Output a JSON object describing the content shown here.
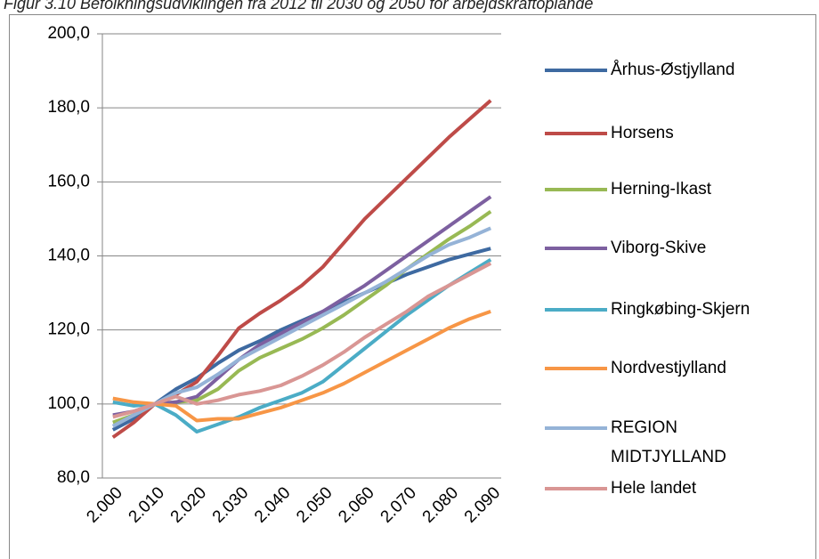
{
  "chart_data": {
    "type": "line",
    "title": "Figur 3.10 Befolkningsudviklingen fra 2012 til 2030 og 2050 for arbejdskraftoplande",
    "categories": [
      "2.000",
      null,
      "2.010",
      null,
      "2.020",
      null,
      "2.030",
      null,
      "2.040",
      null,
      "2.050",
      null,
      "2.060",
      null,
      "2.070",
      null,
      "2.080",
      null,
      "2.090"
    ],
    "ylim": [
      80,
      200
    ],
    "yticks": [
      {
        "value": 80,
        "label": "80,0"
      },
      {
        "value": 100,
        "label": "100,0"
      },
      {
        "value": 120,
        "label": "120,0"
      },
      {
        "value": 140,
        "label": "140,0"
      },
      {
        "value": 160,
        "label": "160,0"
      },
      {
        "value": 180,
        "label": "180,0"
      },
      {
        "value": 200,
        "label": "200,0"
      }
    ],
    "grid": true,
    "legend": "right",
    "series": [
      {
        "name": "Århus-Østjylland",
        "color": "#3e6aa1",
        "values": [
          93,
          96,
          100,
          104,
          107,
          111,
          114.5,
          117,
          120,
          122.5,
          125,
          127.5,
          130,
          132.5,
          135,
          137,
          139,
          140.5,
          142
        ]
      },
      {
        "name": "Horsens",
        "color": "#be4b48",
        "values": [
          91,
          95,
          100,
          102.5,
          106,
          113,
          120.5,
          124.5,
          128,
          132,
          137,
          143.5,
          150,
          155.5,
          161,
          166.5,
          172,
          177,
          182
        ]
      },
      {
        "name": "Herning-Ikast",
        "color": "#98b954",
        "values": [
          95,
          97,
          100,
          100.5,
          101,
          104,
          109,
          112.5,
          115,
          117.5,
          120.5,
          124,
          128,
          132,
          136.5,
          140.5,
          144.5,
          148,
          152
        ]
      },
      {
        "name": "Viborg-Skive",
        "color": "#7d60a0",
        "values": [
          97,
          98,
          100,
          100.5,
          102,
          107,
          112,
          116,
          119,
          122,
          125,
          128.5,
          132,
          136,
          140,
          144,
          148,
          152,
          156
        ]
      },
      {
        "name": "Ringkøbing-Skjern",
        "color": "#4bacc6",
        "values": [
          100.5,
          99.5,
          100,
          97,
          92.5,
          94.5,
          96.5,
          99,
          101,
          103,
          106,
          110.5,
          115,
          119.5,
          124,
          128,
          132,
          135.5,
          139
        ]
      },
      {
        "name": "Nordvestjylland",
        "color": "#f79646",
        "values": [
          101.5,
          100.5,
          100,
          99.5,
          95.5,
          96,
          96,
          97.5,
          99,
          101,
          103,
          105.5,
          108.5,
          111.5,
          114.5,
          117.5,
          120.5,
          123,
          125
        ]
      },
      {
        "name": "REGION MIDTJYLLAND",
        "color": "#95b3d7",
        "values": [
          94,
          97,
          100,
          103,
          104.5,
          108,
          112,
          115,
          118,
          121,
          124,
          127,
          130,
          133,
          136.5,
          140,
          143,
          145,
          147.5
        ]
      },
      {
        "name": "Hele landet",
        "color": "#d99694",
        "values": [
          96.5,
          98,
          100,
          102,
          100,
          101,
          102.5,
          103.5,
          105,
          107.5,
          110.5,
          114,
          118,
          121.5,
          125,
          129,
          132,
          135,
          138
        ]
      }
    ]
  }
}
